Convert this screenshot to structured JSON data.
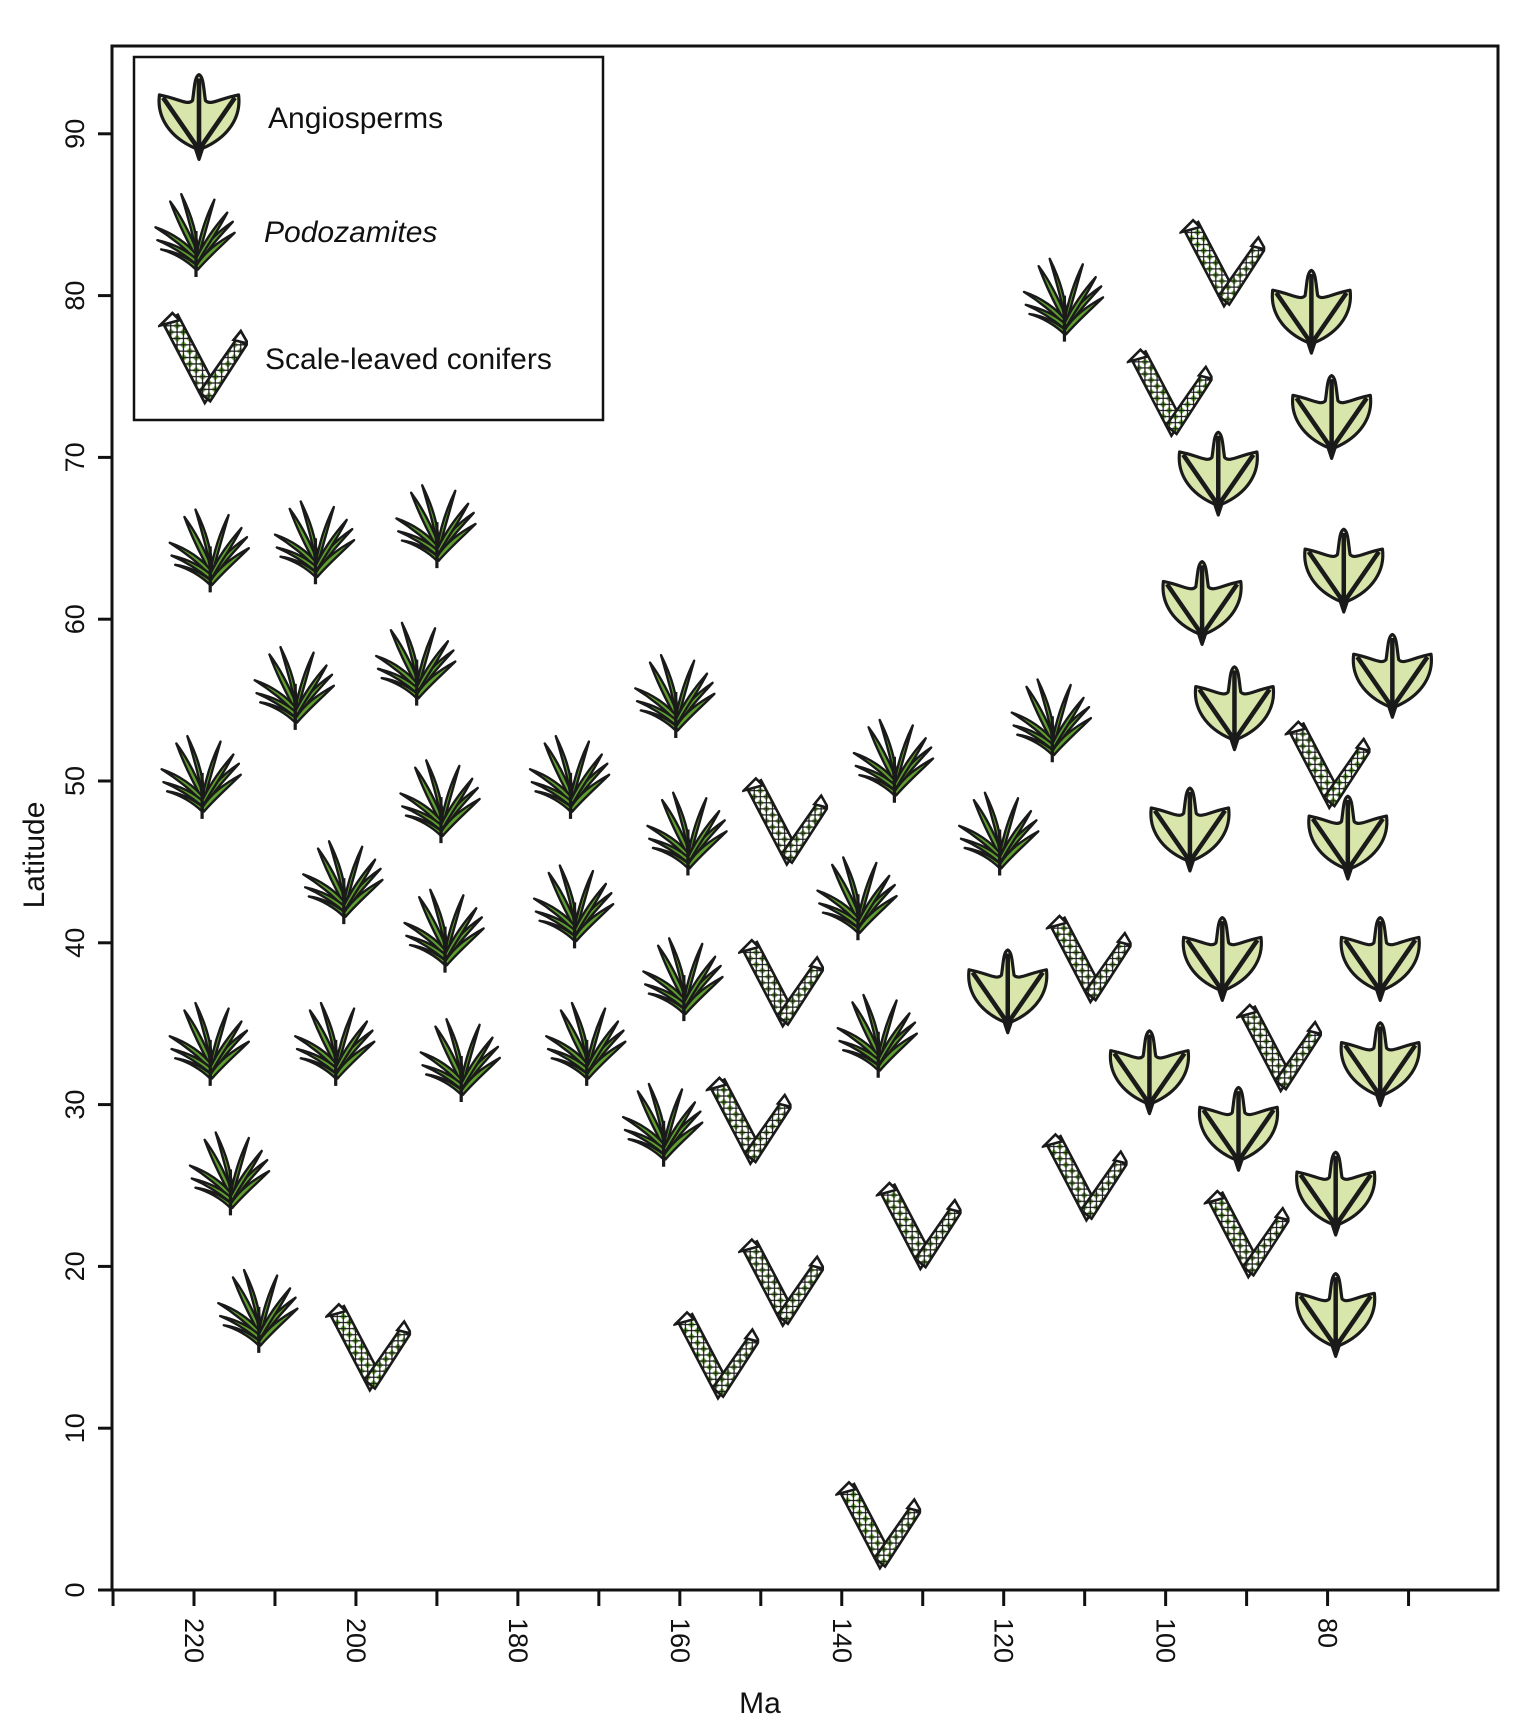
{
  "chart_data": {
    "type": "scatter",
    "title": "",
    "xlabel": "Ma",
    "ylabel": "Latitude",
    "xlim": [
      230,
      60
    ],
    "ylim": [
      0,
      95
    ],
    "x_reversed": true,
    "grid": false,
    "legend_position": "top-left",
    "x_ticks": [
      220,
      200,
      180,
      160,
      140,
      120,
      100,
      80
    ],
    "x_minor_ticks": [
      230,
      210,
      190,
      170,
      150,
      130,
      110,
      90,
      70
    ],
    "y_ticks": [
      0,
      10,
      20,
      30,
      40,
      50,
      60,
      70,
      80,
      90
    ],
    "colors": {
      "outline": "#1a1a1a",
      "podozamites_fill": "#5e9e2e",
      "angiosperm_fill": "#d8e5ab",
      "conifer_fill": "#6cab3c"
    },
    "series": [
      {
        "name": "Angiosperms",
        "italic": false,
        "symbol": "angiosperm-leaf",
        "points": [
          {
            "ma": 82,
            "lat": 79
          },
          {
            "ma": 79.5,
            "lat": 72.5
          },
          {
            "ma": 93.5,
            "lat": 69
          },
          {
            "ma": 78,
            "lat": 63
          },
          {
            "ma": 95.5,
            "lat": 61
          },
          {
            "ma": 72,
            "lat": 56.5
          },
          {
            "ma": 91.5,
            "lat": 54.5
          },
          {
            "ma": 97,
            "lat": 47
          },
          {
            "ma": 77.5,
            "lat": 46.5
          },
          {
            "ma": 93,
            "lat": 39
          },
          {
            "ma": 73.5,
            "lat": 39
          },
          {
            "ma": 119.5,
            "lat": 37
          },
          {
            "ma": 102,
            "lat": 32
          },
          {
            "ma": 73.5,
            "lat": 32.5
          },
          {
            "ma": 91,
            "lat": 28.5
          },
          {
            "ma": 79,
            "lat": 24.5
          },
          {
            "ma": 79,
            "lat": 17
          }
        ]
      },
      {
        "name": "Podozamites",
        "italic": true,
        "symbol": "podozamites-frond",
        "points": [
          {
            "ma": 218,
            "lat": 64.5
          },
          {
            "ma": 205,
            "lat": 65
          },
          {
            "ma": 190,
            "lat": 66
          },
          {
            "ma": 207.5,
            "lat": 56
          },
          {
            "ma": 192.5,
            "lat": 57.5
          },
          {
            "ma": 219,
            "lat": 50.5
          },
          {
            "ma": 189.5,
            "lat": 49
          },
          {
            "ma": 201.5,
            "lat": 44
          },
          {
            "ma": 189,
            "lat": 41
          },
          {
            "ma": 218,
            "lat": 34
          },
          {
            "ma": 202.5,
            "lat": 34
          },
          {
            "ma": 187,
            "lat": 33
          },
          {
            "ma": 215.5,
            "lat": 26
          },
          {
            "ma": 212,
            "lat": 17.5
          },
          {
            "ma": 173.5,
            "lat": 50.5
          },
          {
            "ma": 173,
            "lat": 42.5
          },
          {
            "ma": 171.5,
            "lat": 34
          },
          {
            "ma": 160.5,
            "lat": 55.5
          },
          {
            "ma": 159,
            "lat": 47
          },
          {
            "ma": 159.5,
            "lat": 38
          },
          {
            "ma": 162,
            "lat": 29
          },
          {
            "ma": 133.5,
            "lat": 51.5
          },
          {
            "ma": 138,
            "lat": 43
          },
          {
            "ma": 135.5,
            "lat": 34.5
          },
          {
            "ma": 120.5,
            "lat": 47
          },
          {
            "ma": 114,
            "lat": 54
          },
          {
            "ma": 112.5,
            "lat": 80
          }
        ]
      },
      {
        "name": "Scale-leaved conifers",
        "italic": false,
        "symbol": "scale-leaved-conifer",
        "points": [
          {
            "ma": 198.5,
            "lat": 15
          },
          {
            "ma": 147,
            "lat": 47.5
          },
          {
            "ma": 147.5,
            "lat": 37.5
          },
          {
            "ma": 151.5,
            "lat": 29
          },
          {
            "ma": 147.5,
            "lat": 19
          },
          {
            "ma": 155.5,
            "lat": 14.5
          },
          {
            "ma": 135.5,
            "lat": 4
          },
          {
            "ma": 130.5,
            "lat": 22.5
          },
          {
            "ma": 109.5,
            "lat": 39
          },
          {
            "ma": 110,
            "lat": 25.5
          },
          {
            "ma": 99.5,
            "lat": 74
          },
          {
            "ma": 93,
            "lat": 82
          },
          {
            "ma": 80,
            "lat": 51
          },
          {
            "ma": 86,
            "lat": 33.5
          },
          {
            "ma": 90,
            "lat": 22
          }
        ]
      }
    ]
  },
  "legend": {
    "items": [
      {
        "label": "Angiosperms"
      },
      {
        "label": "Podozamites"
      },
      {
        "label": "Scale-leaved conifers"
      }
    ]
  },
  "axes": {
    "x_title": "Ma",
    "y_title": "Latitude",
    "x_tick_labels": [
      "220",
      "200",
      "180",
      "160",
      "140",
      "120",
      "100",
      "80"
    ],
    "y_tick_labels": [
      "0",
      "10",
      "20",
      "30",
      "40",
      "50",
      "60",
      "70",
      "80",
      "90"
    ]
  }
}
